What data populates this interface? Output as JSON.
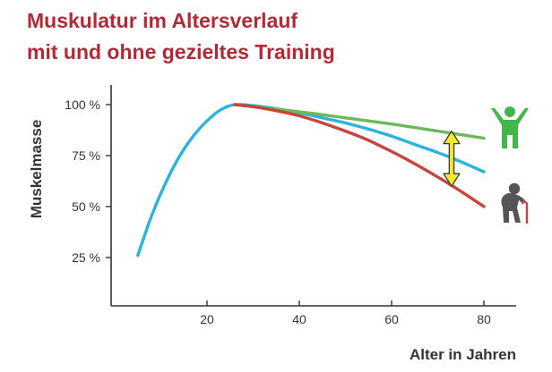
{
  "title": {
    "line1": "Muskulatur im Altersverlauf",
    "line2": "mit und ohne gezieltes Training"
  },
  "chart_data": {
    "type": "line",
    "xlabel": "Alter in Jahren",
    "ylabel": "Muskelmasse",
    "xlim": [
      0,
      86
    ],
    "ylim": [
      0,
      100
    ],
    "x_ticks": [
      20,
      40,
      60,
      80
    ],
    "x_tick_labels": [
      "20",
      "40",
      "60",
      "80"
    ],
    "y_ticks": [
      25,
      50,
      75,
      100
    ],
    "y_tick_labels": [
      "25 %",
      "50 %",
      "75 %",
      "100 %"
    ],
    "grid": false,
    "legend": "none",
    "series": [
      {
        "color": "#2bb3e0",
        "x": [
          5,
          8,
          11,
          14,
          17,
          20,
          23,
          26,
          30,
          35,
          40,
          45,
          50,
          55,
          60,
          65,
          70,
          75,
          80
        ],
        "y": [
          26,
          45.5,
          61.5,
          74.5,
          84.5,
          92,
          97.5,
          100,
          99.5,
          98,
          96,
          93.5,
          91,
          88,
          84.5,
          80.5,
          76.5,
          72,
          67
        ]
      },
      {
        "color": "#6cb85a",
        "x": [
          26,
          40,
          50,
          60,
          70,
          80
        ],
        "y": [
          100,
          96.5,
          93.5,
          90.5,
          87,
          83.5
        ]
      },
      {
        "color": "#c8453c",
        "x": [
          26,
          30,
          35,
          40,
          45,
          50,
          55,
          60,
          65,
          70,
          75,
          80
        ],
        "y": [
          100,
          99,
          97,
          94.5,
          91,
          87,
          82.5,
          77,
          71,
          64.5,
          57.5,
          50
        ]
      }
    ],
    "annotations": [
      {
        "type": "double-arrow",
        "x": 73,
        "y_top": 87,
        "y_bottom": 60,
        "color": "#f3ea2d"
      }
    ]
  },
  "icons": {
    "active_person": {
      "name": "active-person-icon",
      "color": "#43b649"
    },
    "elderly_person": {
      "name": "elderly-person-icon",
      "color": "#555555",
      "cane_color": "#c8453c"
    }
  }
}
